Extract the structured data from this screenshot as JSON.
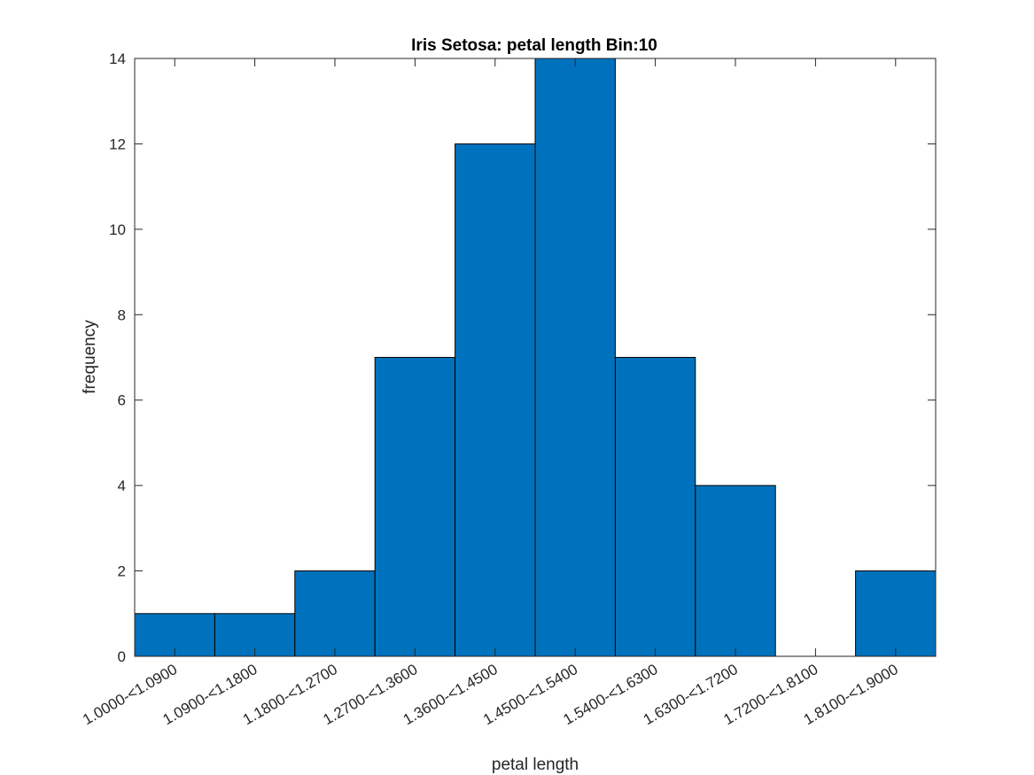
{
  "chart_data": {
    "type": "bar",
    "title": "Iris Setosa: petal length Bin:10",
    "xlabel": "petal length",
    "ylabel": "frequency",
    "categories": [
      "1.0000-<1.0900",
      "1.0900-<1.1800",
      "1.1800-<1.2700",
      "1.2700-<1.3600",
      "1.3600-<1.4500",
      "1.4500-<1.5400",
      "1.5400-<1.6300",
      "1.6300-<1.7200",
      "1.7200-<1.8100",
      "1.8100-<1.9000"
    ],
    "values": [
      1,
      1,
      2,
      7,
      12,
      14,
      7,
      4,
      0,
      2
    ],
    "ylim": [
      0,
      14
    ],
    "yticks": [
      0,
      2,
      4,
      6,
      8,
      10,
      12,
      14
    ],
    "grid": false,
    "legend": "none",
    "bar_color": "#0072BD"
  }
}
